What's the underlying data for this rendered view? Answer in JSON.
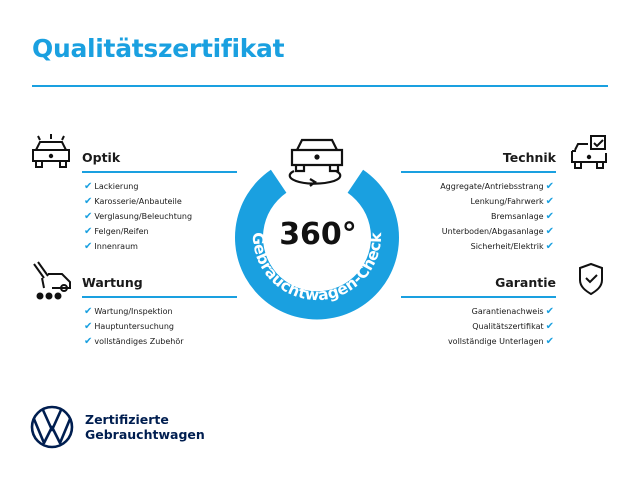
{
  "title": "Qualitätszertifikat",
  "center": {
    "big": "360°",
    "arc_text": "Gebrauchtwagen-Check"
  },
  "sections": {
    "optik": {
      "heading": "Optik",
      "items": [
        "Lackierung",
        "Karosserie/Anbauteile",
        "Verglasung/Beleuchtung",
        "Felgen/Reifen",
        "Innenraum"
      ]
    },
    "wartung": {
      "heading": "Wartung",
      "items": [
        "Wartung/Inspektion",
        "Hauptuntersuchung",
        "vollständiges Zubehör"
      ]
    },
    "technik": {
      "heading": "Technik",
      "items": [
        "Aggregate/Antriebsstrang",
        "Lenkung/Fahrwerk",
        "Bremsanlage",
        "Unterboden/Abgasanlage",
        "Sicherheit/Elektrik"
      ]
    },
    "garantie": {
      "heading": "Garantie",
      "items": [
        "Garantienachweis",
        "Qualitätszertifikat",
        "vollständige Unterlagen"
      ]
    }
  },
  "check_glyph": "✔",
  "brand": {
    "line1": "Zertifizierte",
    "line2": "Gebrauchtwagen",
    "logo": "VW"
  },
  "colors": {
    "accent": "#1aa0e0",
    "brand_navy": "#001e50"
  }
}
